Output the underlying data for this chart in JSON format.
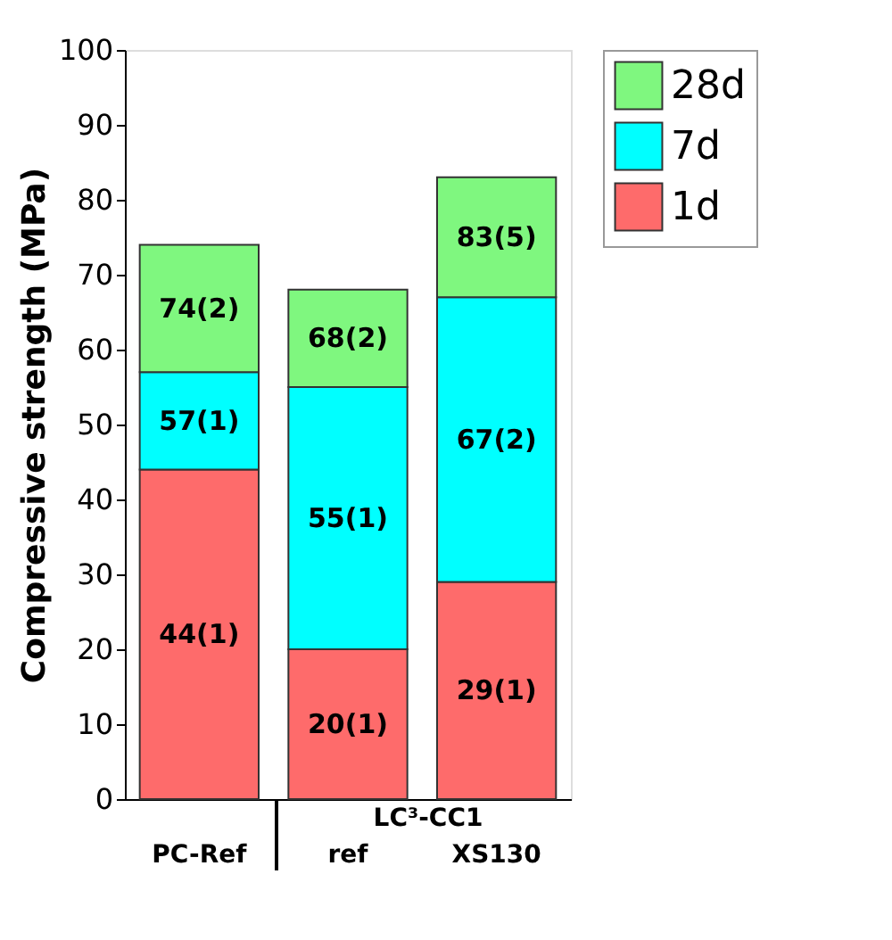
{
  "chart_data": {
    "type": "bar",
    "stacked": true,
    "ylabel": "Compressive strength (MPa)",
    "categories": [
      "PC-Ref",
      "ref",
      "XS130"
    ],
    "series": [
      {
        "name": "1d",
        "color": "#fe6b6b",
        "values": [
          44,
          20,
          29
        ]
      },
      {
        "name": "7d",
        "color": "#00ffff",
        "values": [
          13,
          35,
          38
        ]
      },
      {
        "name": "28d",
        "color": "#7ff77f",
        "values": [
          17,
          13,
          16
        ]
      }
    ],
    "ylim": [
      0,
      100
    ],
    "yticks": [
      0,
      10,
      20,
      30,
      40,
      50,
      60,
      70,
      80,
      90,
      100
    ],
    "grid": false,
    "legend": "top right",
    "annotations": [
      "44(1)",
      "57(1)",
      "74(2)",
      "20(1)",
      "55(1)",
      "68(2)",
      "29(1)",
      "67(2)",
      "83(5)",
      "LC³-CC1"
    ]
  }
}
